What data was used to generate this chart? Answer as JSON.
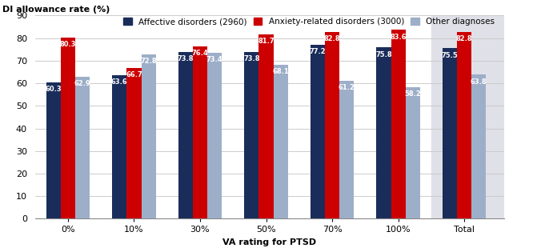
{
  "categories": [
    "0%",
    "10%",
    "30%",
    "50%",
    "70%",
    "100%",
    "Total"
  ],
  "series": [
    {
      "name": "Affective disorders (2960)",
      "color": "#1a2d5a",
      "values": [
        60.3,
        63.6,
        73.8,
        73.8,
        77.2,
        75.8,
        75.5
      ]
    },
    {
      "name": "Anxiety-related disorders (3000)",
      "color": "#cc0000",
      "values": [
        80.3,
        66.7,
        76.4,
        81.7,
        82.8,
        83.6,
        82.8
      ]
    },
    {
      "name": "Other diagnoses",
      "color": "#9daec8",
      "values": [
        62.9,
        72.8,
        73.4,
        68.1,
        61.2,
        58.2,
        63.8
      ]
    }
  ],
  "ylabel": "DI allowance rate (%)",
  "xlabel": "VA rating for PTSD",
  "ylim": [
    0,
    90
  ],
  "yticks": [
    0,
    10,
    20,
    30,
    40,
    50,
    60,
    70,
    80,
    90
  ],
  "total_bg_color": "#e0e0e8",
  "bar_width": 0.22,
  "label_fontsize": 6.0,
  "axis_label_fontsize": 8,
  "legend_fontsize": 7.5,
  "tick_fontsize": 8,
  "grid_color": "#cccccc",
  "background_color": "#ffffff"
}
